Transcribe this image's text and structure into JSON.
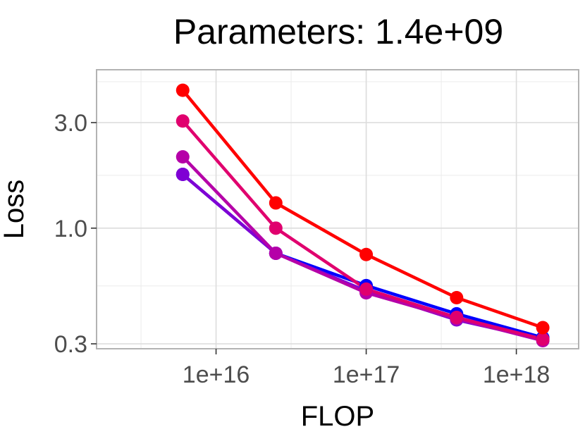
{
  "chart_data": {
    "type": "line",
    "title": "Parameters: 1.4e+09",
    "xlabel": "FLOP",
    "ylabel": "Loss",
    "x_scale": "log10",
    "y_scale": "log10",
    "xlim": [
      1600000000000000.0,
      2.6e+18
    ],
    "ylim": [
      0.285,
      5.2
    ],
    "x_ticks": [
      1e+16,
      1e+17,
      1e+18
    ],
    "x_tick_labels": [
      "1e+16",
      "1e+17",
      "1e+18"
    ],
    "y_ticks": [
      0.3,
      1.0,
      3.0
    ],
    "y_tick_labels": [
      "0.3",
      "1.0",
      "3.0"
    ],
    "grid": true,
    "x": [
      6000000000000000.0,
      2.5e+16,
      1e+17,
      4e+17,
      1.5e+18
    ],
    "series": [
      {
        "color": "#0000ff",
        "values": [
          1.75,
          0.77,
          0.55,
          0.41,
          0.32
        ]
      },
      {
        "color": "#7f00d4",
        "values": [
          1.75,
          0.77,
          0.52,
          0.385,
          0.315
        ]
      },
      {
        "color": "#b500a8",
        "values": [
          2.1,
          0.77,
          0.51,
          0.39,
          0.31
        ]
      },
      {
        "color": "#e0006e",
        "values": [
          3.05,
          1.0,
          0.53,
          0.395,
          0.315
        ]
      },
      {
        "color": "#ff0000",
        "values": [
          4.2,
          1.3,
          0.76,
          0.485,
          0.355
        ]
      }
    ]
  }
}
